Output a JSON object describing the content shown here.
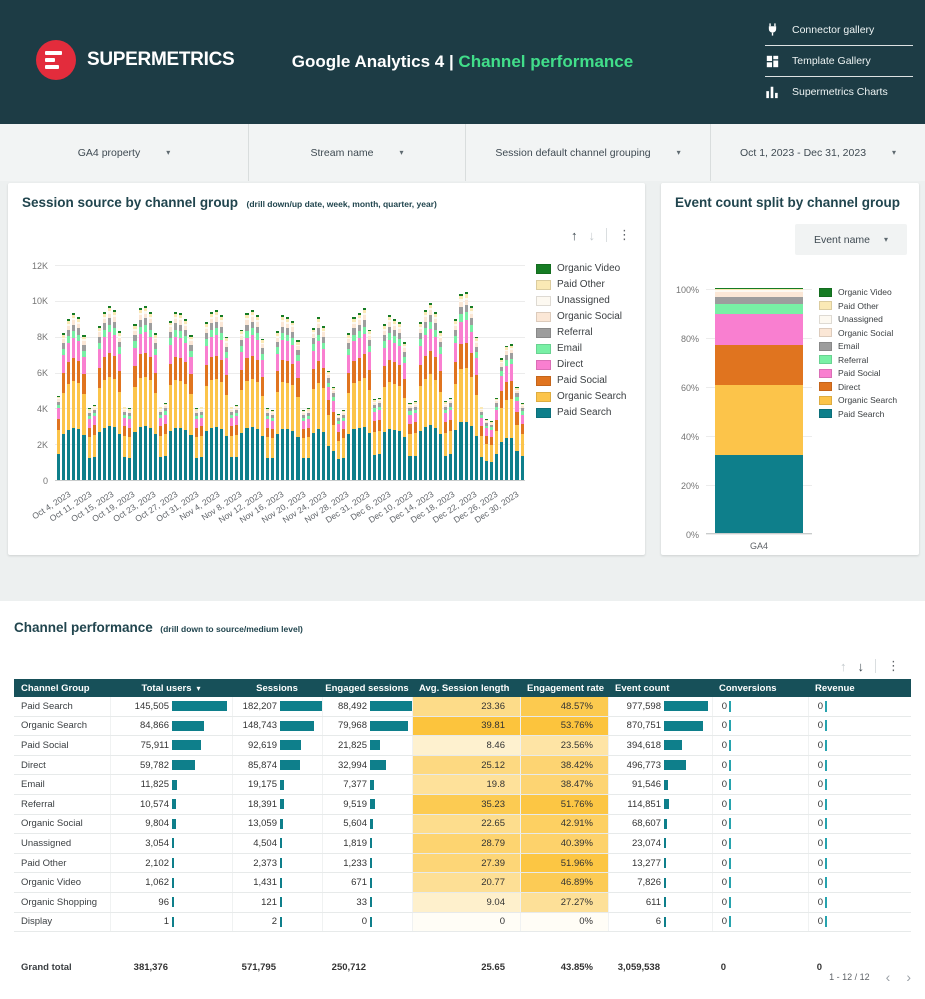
{
  "header": {
    "brand": "SUPERMETRICS",
    "title_prefix": "Google Analytics 4 |",
    "title_accent": "Channel performance",
    "nav": [
      {
        "label": "Connector gallery",
        "icon": "plug-icon"
      },
      {
        "label": "Template Gallery",
        "icon": "grid-icon"
      },
      {
        "label": "Supermetrics Charts",
        "icon": "bar-chart-icon"
      }
    ]
  },
  "filters": [
    {
      "label": "GA4 property"
    },
    {
      "label": "Stream name"
    },
    {
      "label": "Session default channel grouping"
    },
    {
      "label": "Oct 1, 2023 - Dec 31, 2023"
    }
  ],
  "colors": {
    "header_bg": "#1d3c45",
    "accent_green": "#41de8a",
    "brand_red": "#e32c3c",
    "table_header_bg": "#175059",
    "bar_teal": "#0e7f8b",
    "heat_strong": "#fcc43d",
    "heat_weak": "#fffdf6"
  },
  "session_chart": {
    "title": "Session source by channel group",
    "subtitle": "(drill down/up date, week, month, quarter, year)",
    "legend": [
      {
        "label": "Organic Video",
        "color": "#167c24"
      },
      {
        "label": "Paid Other",
        "color": "#fae9b5"
      },
      {
        "label": "Unassigned",
        "color": "#fdf9f1"
      },
      {
        "label": "Organic Social",
        "color": "#fbe7d6"
      },
      {
        "label": "Referral",
        "color": "#9d9d9d"
      },
      {
        "label": "Email",
        "color": "#78f0a5"
      },
      {
        "label": "Direct",
        "color": "#f97fd0"
      },
      {
        "label": "Paid Social",
        "color": "#e0741f"
      },
      {
        "label": "Organic Search",
        "color": "#fcc44a"
      },
      {
        "label": "Paid Search",
        "color": "#0e7f8b"
      }
    ]
  },
  "event_chart": {
    "title": "Event count split by channel group",
    "control_label": "Event name",
    "x_label": "GA4",
    "legend": [
      {
        "label": "Organic Video",
        "color": "#167c24"
      },
      {
        "label": "Paid Other",
        "color": "#fae9b5"
      },
      {
        "label": "Unassigned",
        "color": "#fdf9f1"
      },
      {
        "label": "Organic Social",
        "color": "#fbe7d6"
      },
      {
        "label": "Email",
        "color": "#9d9d9d"
      },
      {
        "label": "Referral",
        "color": "#78f0a5"
      },
      {
        "label": "Paid Social",
        "color": "#f97fd0"
      },
      {
        "label": "Direct",
        "color": "#e0741f"
      },
      {
        "label": "Organic Search",
        "color": "#fcc44a"
      },
      {
        "label": "Paid Search",
        "color": "#0e7f8b"
      }
    ]
  },
  "chart_data": [
    {
      "type": "bar",
      "stacked": true,
      "title": "Session source by channel group (drill down/up date, week, month, quarter, year)",
      "x_unit": "day",
      "date_range": "Oct 1, 2023 - Dec 31, 2023",
      "ylim": [
        0,
        12000
      ],
      "y_ticks": [
        "12K",
        "10K",
        "8K",
        "6K",
        "4K",
        "2K",
        "0"
      ],
      "x_tick_labels": [
        "Oct 4, 2023",
        "Oct 11, 2023",
        "Oct 15, 2023",
        "Oct 19, 2023",
        "Oct 23, 2023",
        "Oct 27, 2023",
        "Oct 31, 2023",
        "Nov 4, 2023",
        "Nov 8, 2023",
        "Nov 12, 2023",
        "Nov 16, 2023",
        "Nov 20, 2023",
        "Nov 24, 2023",
        "Nov 28, 2023",
        "Dec 31, 2023",
        "Dec 6, 2023",
        "Dec 10, 2023",
        "Dec 14, 2023",
        "Dec 18, 2023",
        "Dec 22, 2023",
        "Dec 26, 2023",
        "Dec 30, 2023"
      ],
      "series_bottom_to_top": [
        {
          "name": "Paid Search",
          "color": "#0e7f8b",
          "share": 0.31
        },
        {
          "name": "Organic Search",
          "color": "#fcc44a",
          "share": 0.285
        },
        {
          "name": "Paid Social",
          "color": "#e0741f",
          "share": 0.135
        },
        {
          "name": "Direct",
          "color": "#f97fd0",
          "share": 0.12
        },
        {
          "name": "Email",
          "color": "#78f0a5",
          "share": 0.042
        },
        {
          "name": "Referral",
          "color": "#9d9d9d",
          "share": 0.038
        },
        {
          "name": "Organic Social",
          "color": "#fbe7d6",
          "share": 0.028
        },
        {
          "name": "Unassigned",
          "color": "#fdf9f1",
          "share": 0.012
        },
        {
          "name": "Paid Other",
          "color": "#fae9b5",
          "share": 0.018
        },
        {
          "name": "Organic Video",
          "color": "#167c24",
          "share": 0.012
        }
      ],
      "daily_totals": [
        4700,
        8200,
        9000,
        9300,
        9100,
        8100,
        4000,
        4200,
        8600,
        9400,
        9700,
        9500,
        8300,
        4100,
        4000,
        8700,
        9600,
        9700,
        9400,
        8200,
        4100,
        4300,
        8900,
        9400,
        9300,
        9000,
        8100,
        4000,
        4100,
        8800,
        9400,
        9500,
        9200,
        8000,
        4100,
        4200,
        8400,
        9300,
        9500,
        9200,
        7900,
        4000,
        3900,
        8300,
        9200,
        9100,
        8900,
        7800,
        3900,
        4000,
        8500,
        9100,
        8600,
        6100,
        5200,
        3700,
        3900,
        8200,
        9100,
        9300,
        9600,
        8400,
        4500,
        4600,
        8700,
        9200,
        9000,
        8800,
        7700,
        4300,
        4400,
        8800,
        9500,
        9900,
        9400,
        8300,
        4400,
        4600,
        9000,
        10400,
        10500,
        9700,
        8000,
        4100,
        3400,
        3300,
        4600,
        6800,
        7500,
        7600,
        5200,
        4300
      ]
    },
    {
      "type": "bar",
      "stacked": true,
      "normalized": true,
      "title": "Event count split by channel group",
      "categories": [
        "GA4"
      ],
      "ylim": [
        0,
        100
      ],
      "y_ticks": [
        "100%",
        "80%",
        "60%",
        "40%",
        "20%",
        "0%"
      ],
      "segments_bottom_to_top": [
        {
          "name": "Paid Search",
          "pct": 31.95,
          "color": "#0e7f8b"
        },
        {
          "name": "Organic Search",
          "pct": 28.46,
          "color": "#fcc44a"
        },
        {
          "name": "Direct",
          "pct": 16.24,
          "color": "#e0741f"
        },
        {
          "name": "Paid Social",
          "pct": 12.9,
          "color": "#f97fd0"
        },
        {
          "name": "Referral",
          "pct": 3.75,
          "color": "#78f0a5"
        },
        {
          "name": "Email",
          "pct": 2.99,
          "color": "#9d9d9d"
        },
        {
          "name": "Organic Social",
          "pct": 2.24,
          "color": "#fbe7d6"
        },
        {
          "name": "Unassigned",
          "pct": 0.75,
          "color": "#fdf9f1"
        },
        {
          "name": "Paid Other",
          "pct": 0.43,
          "color": "#fae9b5"
        },
        {
          "name": "Organic Video",
          "pct": 0.26,
          "color": "#167c24"
        }
      ]
    }
  ],
  "table": {
    "title": "Channel performance",
    "subtitle": "(drill down to source/medium level)",
    "columns": [
      "Channel Group",
      "Total users",
      "Sessions",
      "Engaged sessions",
      "Avg. Session length",
      "Engagement rate",
      "Event count",
      "Conversions",
      "Revenue"
    ],
    "sorted_column": "Total users",
    "maxima": {
      "users": 145505,
      "sessions": 182207,
      "engaged": 88492,
      "events": 977598,
      "avg_len": 39.81,
      "rate": 53.76
    },
    "rows": [
      {
        "channel": "Paid Search",
        "users": "145,505",
        "sessions": "182,207",
        "engaged": "88,492",
        "avg_len": "23.36",
        "rate": "48.57%",
        "events": "977,598",
        "conversions": "0",
        "revenue": "0"
      },
      {
        "channel": "Organic Search",
        "users": "84,866",
        "sessions": "148,743",
        "engaged": "79,968",
        "avg_len": "39.81",
        "rate": "53.76%",
        "events": "870,751",
        "conversions": "0",
        "revenue": "0"
      },
      {
        "channel": "Paid Social",
        "users": "75,911",
        "sessions": "92,619",
        "engaged": "21,825",
        "avg_len": "8.46",
        "rate": "23.56%",
        "events": "394,618",
        "conversions": "0",
        "revenue": "0"
      },
      {
        "channel": "Direct",
        "users": "59,782",
        "sessions": "85,874",
        "engaged": "32,994",
        "avg_len": "25.12",
        "rate": "38.42%",
        "events": "496,773",
        "conversions": "0",
        "revenue": "0"
      },
      {
        "channel": "Email",
        "users": "11,825",
        "sessions": "19,175",
        "engaged": "7,377",
        "avg_len": "19.8",
        "rate": "38.47%",
        "events": "91,546",
        "conversions": "0",
        "revenue": "0"
      },
      {
        "channel": "Referral",
        "users": "10,574",
        "sessions": "18,391",
        "engaged": "9,519",
        "avg_len": "35.23",
        "rate": "51.76%",
        "events": "114,851",
        "conversions": "0",
        "revenue": "0"
      },
      {
        "channel": "Organic Social",
        "users": "9,804",
        "sessions": "13,059",
        "engaged": "5,604",
        "avg_len": "22.65",
        "rate": "42.91%",
        "events": "68,607",
        "conversions": "0",
        "revenue": "0"
      },
      {
        "channel": "Unassigned",
        "users": "3,054",
        "sessions": "4,504",
        "engaged": "1,819",
        "avg_len": "28.79",
        "rate": "40.39%",
        "events": "23,074",
        "conversions": "0",
        "revenue": "0"
      },
      {
        "channel": "Paid Other",
        "users": "2,102",
        "sessions": "2,373",
        "engaged": "1,233",
        "avg_len": "27.39",
        "rate": "51.96%",
        "events": "13,277",
        "conversions": "0",
        "revenue": "0"
      },
      {
        "channel": "Organic Video",
        "users": "1,062",
        "sessions": "1,431",
        "engaged": "671",
        "avg_len": "20.77",
        "rate": "46.89%",
        "events": "7,826",
        "conversions": "0",
        "revenue": "0"
      },
      {
        "channel": "Organic Shopping",
        "users": "96",
        "sessions": "121",
        "engaged": "33",
        "avg_len": "9.04",
        "rate": "27.27%",
        "events": "611",
        "conversions": "0",
        "revenue": "0"
      },
      {
        "channel": "Display",
        "users": "1",
        "sessions": "2",
        "engaged": "0",
        "avg_len": "0",
        "rate": "0%",
        "events": "6",
        "conversions": "0",
        "revenue": "0"
      }
    ],
    "grand_total": {
      "channel": "Grand total",
      "users": "381,376",
      "sessions": "571,795",
      "engaged": "250,712",
      "avg_len": "25.65",
      "rate": "43.85%",
      "events": "3,059,538",
      "conversions": "0",
      "revenue": "0"
    },
    "pagination": "1 - 12 / 12"
  }
}
